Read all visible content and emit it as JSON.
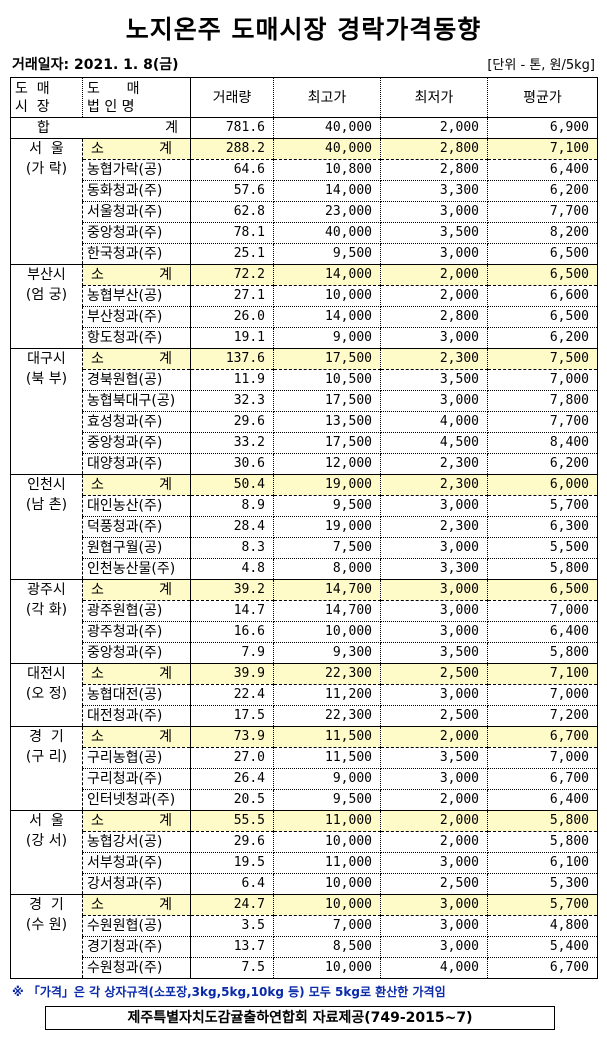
{
  "title": "노지온주 도매시장 경락가격동향",
  "date": "거래일자: 2021. 1. 8(금)",
  "unit": "[단위 - 톤, 원/5kg]",
  "headers": {
    "market_1": "도  매",
    "market_2": "시  장",
    "corp_1": "도      매",
    "corp_2": "법 인 명",
    "volume": "거래량",
    "max": "최고가",
    "min": "최저가",
    "avg": "평균가"
  },
  "total": {
    "label_1": "합",
    "label_2": "계",
    "volume": "781.6",
    "max": "40,000",
    "min": "2,000",
    "avg": "6,900"
  },
  "subtotal_label": [
    "소",
    "계"
  ],
  "groups": [
    {
      "market": [
        "서  울",
        "(가 락)"
      ],
      "subtotal": [
        "288.2",
        "40,000",
        "2,800",
        "7,100"
      ],
      "rows": [
        [
          "농협가락(공)",
          "64.6",
          "10,800",
          "2,800",
          "6,400"
        ],
        [
          "동화청과(주)",
          "57.6",
          "14,000",
          "3,300",
          "6,200"
        ],
        [
          "서울청과(주)",
          "62.8",
          "23,000",
          "3,000",
          "7,700"
        ],
        [
          "중앙청과(주)",
          "78.1",
          "40,000",
          "3,500",
          "8,200"
        ],
        [
          "한국청과(주)",
          "25.1",
          "9,500",
          "3,000",
          "6,500"
        ]
      ]
    },
    {
      "market": [
        "부산시",
        "(엄 궁)"
      ],
      "subtotal": [
        "72.2",
        "14,000",
        "2,000",
        "6,500"
      ],
      "rows": [
        [
          "농협부산(공)",
          "27.1",
          "10,000",
          "2,000",
          "6,600"
        ],
        [
          "부산청과(주)",
          "26.0",
          "14,000",
          "2,800",
          "6,500"
        ],
        [
          "항도청과(주)",
          "19.1",
          "9,000",
          "3,000",
          "6,200"
        ]
      ]
    },
    {
      "market": [
        "대구시",
        "(북 부)"
      ],
      "subtotal": [
        "137.6",
        "17,500",
        "2,300",
        "7,500"
      ],
      "rows": [
        [
          "경북원협(공)",
          "11.9",
          "10,500",
          "3,500",
          "7,000"
        ],
        [
          "농협북대구(공)",
          "32.3",
          "17,500",
          "3,000",
          "7,800"
        ],
        [
          "효성청과(주)",
          "29.6",
          "13,500",
          "4,000",
          "7,700"
        ],
        [
          "중앙청과(주)",
          "33.2",
          "17,500",
          "4,500",
          "8,400"
        ],
        [
          "대양청과(주)",
          "30.6",
          "12,000",
          "2,300",
          "6,200"
        ]
      ]
    },
    {
      "market": [
        "인천시",
        "(남 촌)"
      ],
      "subtotal": [
        "50.4",
        "19,000",
        "2,300",
        "6,000"
      ],
      "rows": [
        [
          "대인농산(주)",
          "8.9",
          "9,500",
          "3,000",
          "5,700"
        ],
        [
          "덕풍청과(주)",
          "28.4",
          "19,000",
          "2,300",
          "6,300"
        ],
        [
          "원협구월(공)",
          "8.3",
          "7,500",
          "3,000",
          "5,500"
        ],
        [
          "인천농산물(주)",
          "4.8",
          "8,000",
          "3,300",
          "5,800"
        ]
      ]
    },
    {
      "market": [
        "광주시",
        "(각 화)"
      ],
      "subtotal": [
        "39.2",
        "14,700",
        "3,000",
        "6,500"
      ],
      "rows": [
        [
          "광주원협(공)",
          "14.7",
          "14,700",
          "3,000",
          "7,000"
        ],
        [
          "광주청과(주)",
          "16.6",
          "10,000",
          "3,000",
          "6,400"
        ],
        [
          "중앙청과(주)",
          "7.9",
          "9,300",
          "3,500",
          "5,800"
        ]
      ]
    },
    {
      "market": [
        "대전시",
        "(오 정)"
      ],
      "subtotal": [
        "39.9",
        "22,300",
        "2,500",
        "7,100"
      ],
      "rows": [
        [
          "농협대전(공)",
          "22.4",
          "11,200",
          "3,000",
          "7,000"
        ],
        [
          "대전청과(주)",
          "17.5",
          "22,300",
          "2,500",
          "7,200"
        ]
      ]
    },
    {
      "market": [
        "경  기",
        "(구 리)"
      ],
      "subtotal": [
        "73.9",
        "11,500",
        "2,000",
        "6,700"
      ],
      "rows": [
        [
          "구리농협(공)",
          "27.0",
          "11,500",
          "3,500",
          "7,000"
        ],
        [
          "구리청과(주)",
          "26.4",
          "9,000",
          "3,000",
          "6,700"
        ],
        [
          "인터넷청과(주)",
          "20.5",
          "9,500",
          "2,000",
          "6,400"
        ]
      ]
    },
    {
      "market": [
        "서  울",
        "(강 서)"
      ],
      "subtotal": [
        "55.5",
        "11,000",
        "2,000",
        "5,800"
      ],
      "rows": [
        [
          "농협강서(공)",
          "29.6",
          "10,000",
          "2,000",
          "5,800"
        ],
        [
          "서부청과(주)",
          "19.5",
          "11,000",
          "3,000",
          "6,100"
        ],
        [
          "강서청과(주)",
          "6.4",
          "10,000",
          "2,500",
          "5,300"
        ]
      ]
    },
    {
      "market": [
        "경  기",
        "(수 원)"
      ],
      "subtotal": [
        "24.7",
        "10,000",
        "3,000",
        "5,700"
      ],
      "rows": [
        [
          "수원원협(공)",
          "3.5",
          "7,000",
          "3,000",
          "4,800"
        ],
        [
          "경기청과(주)",
          "13.7",
          "8,500",
          "3,000",
          "5,400"
        ],
        [
          "수원청과(주)",
          "7.5",
          "10,000",
          "4,000",
          "6,700"
        ]
      ]
    }
  ],
  "note": "※ 「가격」은 각 상자규격(소포장,3kg,5kg,10kg 등) 모두 5kg로 환산한 가격임",
  "source": "제주특별자치도감귤출하연합회 자료제공(749-2015~7)"
}
